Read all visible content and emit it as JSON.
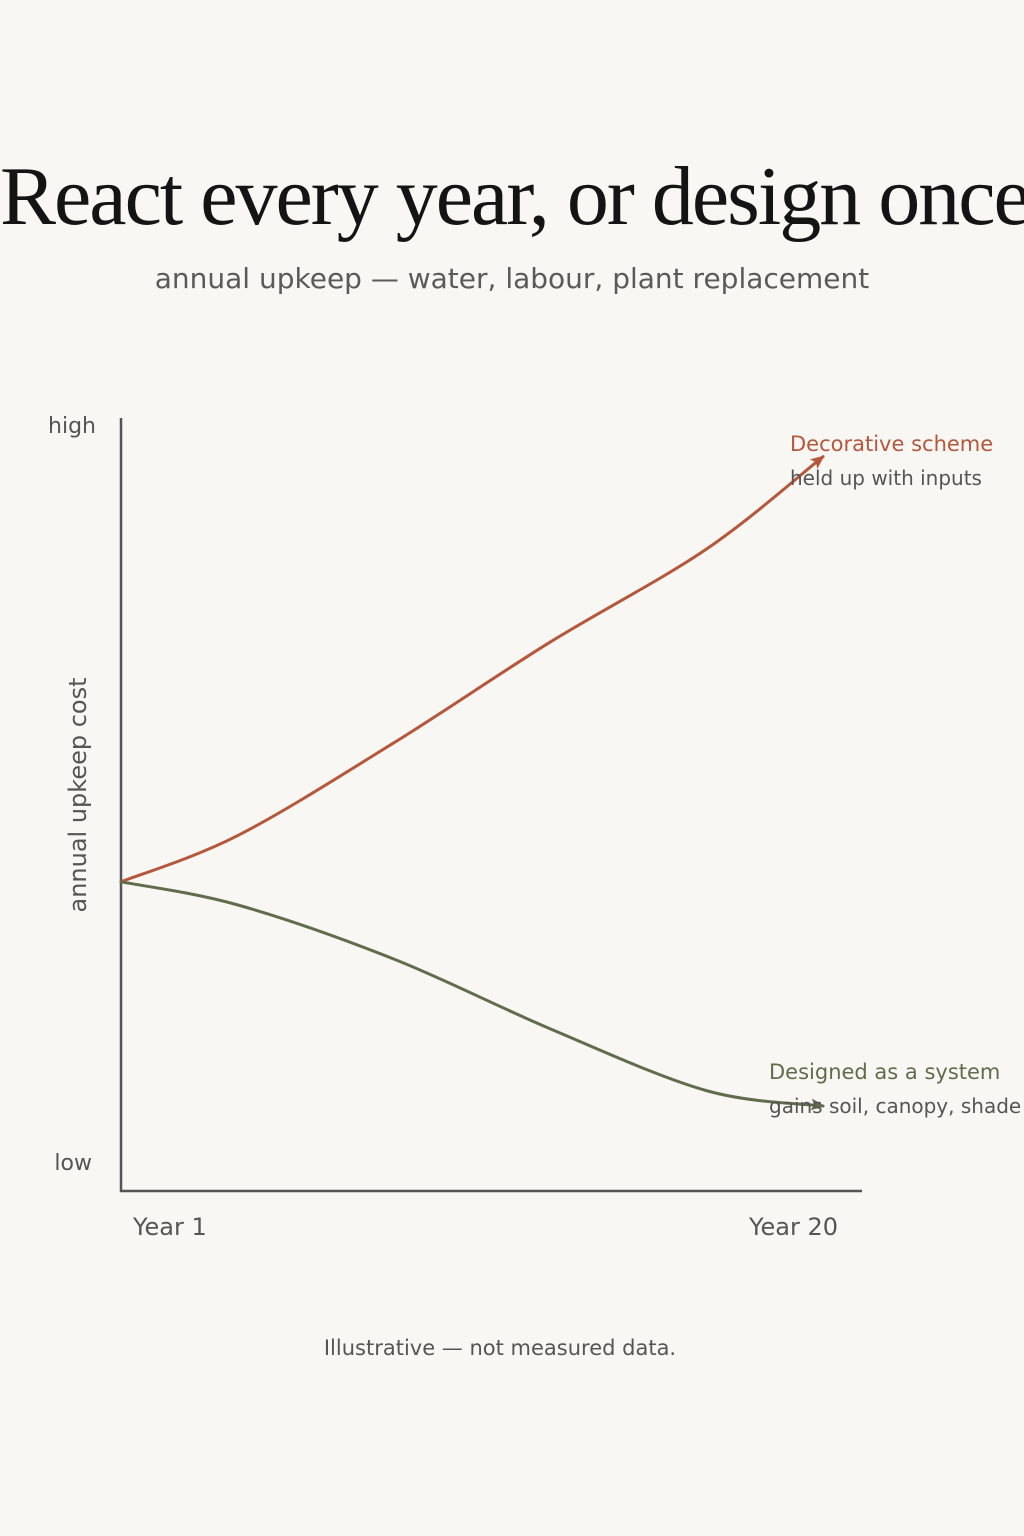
{
  "title": "React every year, or design once",
  "subtitle": "annual upkeep — water, labour, plant replacement",
  "footnote": "Illustrative — not measured data.",
  "chart_data": {
    "type": "line",
    "title": "React every year, or design once",
    "subtitle": "annual upkeep — water, labour, plant replacement",
    "xlabel": "",
    "ylabel": "annual upkeep cost",
    "x_ticks": [
      "Year 1",
      "Year 20"
    ],
    "y_ticks": [
      "high",
      "low"
    ],
    "xlim": [
      1,
      20
    ],
    "ylim": [
      0,
      100
    ],
    "grid": false,
    "illustrative": true,
    "series": [
      {
        "name": "Decorative scheme",
        "note": "held up with inputs",
        "color": "#b5573b",
        "x": [
          1,
          4,
          8,
          12,
          16,
          19
        ],
        "y": [
          40,
          46,
          58,
          71,
          83,
          95
        ]
      },
      {
        "name": "Designed as a system",
        "note": "gains soil, canopy, shade",
        "color": "#626c4c",
        "x": [
          1,
          4,
          8,
          12,
          16,
          19
        ],
        "y": [
          40,
          37,
          30,
          21,
          13,
          11
        ]
      }
    ]
  }
}
